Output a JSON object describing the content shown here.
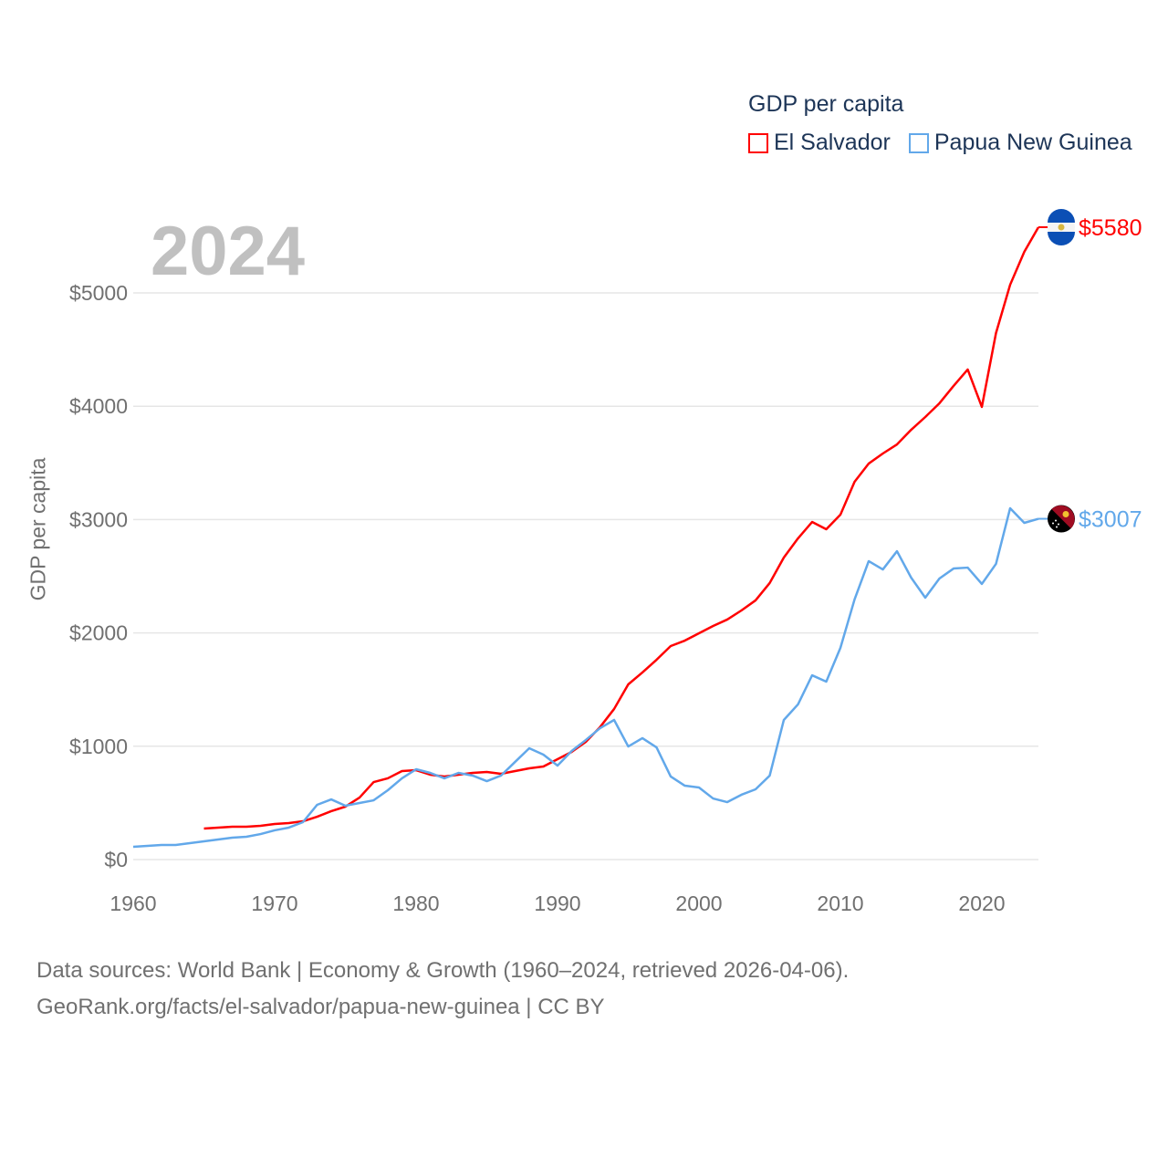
{
  "chart_data": {
    "type": "line",
    "title": "2024",
    "xlabel": "",
    "ylabel": "GDP per capita",
    "xlim": [
      1960,
      2024
    ],
    "ylim": [
      0,
      5580
    ],
    "x_ticks": [
      1960,
      1970,
      1980,
      1990,
      2000,
      2010,
      2020
    ],
    "y_ticks": [
      0,
      1000,
      2000,
      3000,
      4000,
      5000
    ],
    "y_tick_labels": [
      "$0",
      "$1000",
      "$2000",
      "$3000",
      "$4000",
      "$5000"
    ],
    "grid": true,
    "legend_title": "GDP per capita",
    "legend_position": "top-right",
    "series": [
      {
        "name": "El Salvador",
        "color": "#ff0000",
        "end_label": "$5580",
        "start_year": 1965,
        "values": [
          274,
          282,
          290,
          290,
          298,
          314,
          322,
          338,
          378,
          427,
          467,
          547,
          684,
          717,
          781,
          789,
          749,
          733,
          749,
          765,
          773,
          757,
          781,
          805,
          821,
          886,
          950,
          1039,
          1168,
          1329,
          1546,
          1651,
          1763,
          1884,
          1932,
          1997,
          2061,
          2118,
          2198,
          2287,
          2440,
          2665,
          2834,
          2979,
          2915,
          3043,
          3333,
          3494,
          3583,
          3663,
          3792,
          3905,
          4026,
          4179,
          4324,
          3994,
          4646,
          5072,
          5362,
          5580
        ]
      },
      {
        "name": "Papua New Guinea",
        "color": "#62a8ea",
        "end_label": "$3007",
        "start_year": 1960,
        "values": [
          113,
          121,
          129,
          129,
          145,
          161,
          177,
          193,
          201,
          225,
          258,
          282,
          330,
          483,
          531,
          475,
          499,
          523,
          612,
          717,
          797,
          765,
          717,
          765,
          741,
          692,
          741,
          862,
          982,
          926,
          829,
          958,
          1055,
          1159,
          1232,
          998,
          1071,
          990,
          733,
          652,
          636,
          539,
          507,
          572,
          620,
          741,
          1232,
          1369,
          1626,
          1570,
          1868,
          2295,
          2633,
          2560,
          2721,
          2488,
          2311,
          2480,
          2568,
          2576,
          2432,
          2609,
          3100,
          2971,
          3007
        ]
      }
    ]
  },
  "footer": {
    "line1": "Data sources: World Bank | Economy & Growth (1960–2024, retrieved 2026-04-06).",
    "line2": "GeoRank.org/facts/el-salvador/papua-new-guinea | CC BY"
  }
}
